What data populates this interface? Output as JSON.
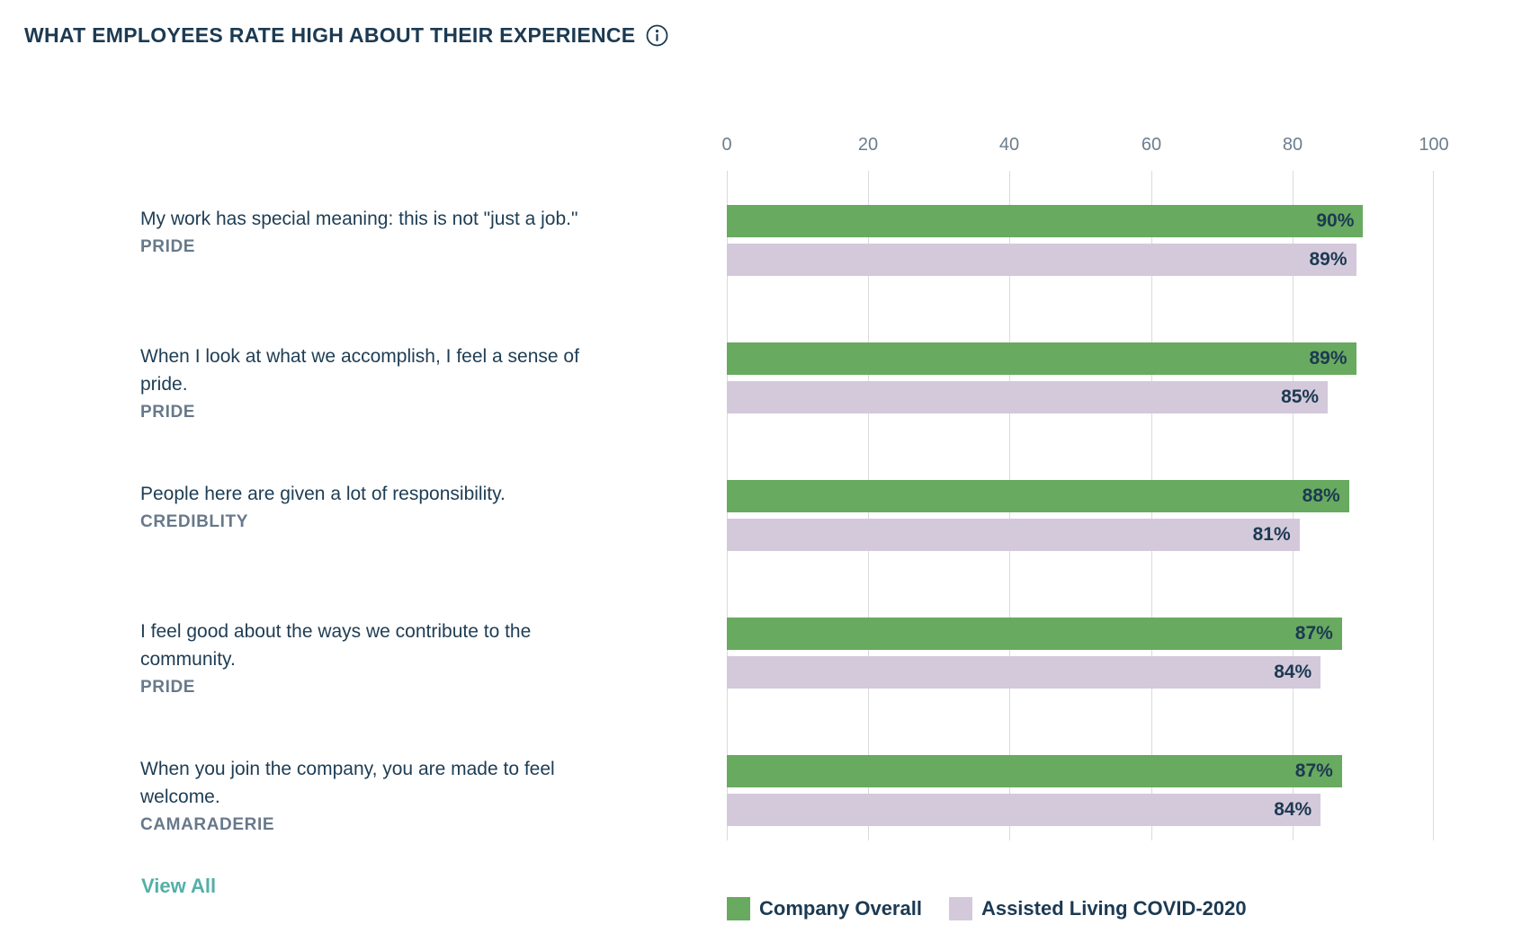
{
  "header": {
    "title": "WHAT EMPLOYEES RATE HIGH ABOUT THEIR EXPERIENCE"
  },
  "colors": {
    "green": "#68aa5f",
    "lavender": "#d4c9db",
    "navy": "#1c3a52",
    "teal": "#54afa7",
    "dimension_gray": "#67798a",
    "axis_gray": "#6b7e8e",
    "gridline": "#d8dbdd"
  },
  "chart_data": {
    "type": "bar",
    "orientation": "horizontal",
    "title": "WHAT EMPLOYEES RATE HIGH ABOUT THEIR EXPERIENCE",
    "grid": true,
    "legend_position": "bottom",
    "x_axis": {
      "range": [
        0,
        100
      ],
      "ticks": [
        0,
        20,
        40,
        60,
        80,
        100
      ]
    },
    "series_names": [
      "Company Overall",
      "Assisted Living COVID-2020"
    ],
    "rows": [
      {
        "question": "My work has special meaning: this is not \"just a job.\"",
        "dimension": "PRIDE",
        "company_overall": 90,
        "company_overall_label": "90%",
        "assisted_living": 89,
        "assisted_living_label": "89%"
      },
      {
        "question": "When I look at what we accomplish, I feel a sense of pride.",
        "dimension": "PRIDE",
        "company_overall": 89,
        "company_overall_label": "89%",
        "assisted_living": 85,
        "assisted_living_label": "85%"
      },
      {
        "question": "People here are given a lot of responsibility.",
        "dimension": "CREDIBLITY",
        "company_overall": 88,
        "company_overall_label": "88%",
        "assisted_living": 81,
        "assisted_living_label": "81%"
      },
      {
        "question": "I feel good about the ways we contribute to the community.",
        "dimension": "PRIDE",
        "company_overall": 87,
        "company_overall_label": "87%",
        "assisted_living": 84,
        "assisted_living_label": "84%"
      },
      {
        "question": "When you join the company, you are made to feel welcome.",
        "dimension": "CAMARADERIE",
        "company_overall": 87,
        "company_overall_label": "87%",
        "assisted_living": 84,
        "assisted_living_label": "84%"
      }
    ]
  },
  "legend": {
    "items": [
      {
        "label": "Company Overall",
        "color": "#68aa5f"
      },
      {
        "label": "Assisted Living COVID-2020",
        "color": "#d4c9db"
      }
    ]
  },
  "footer": {
    "view_all_label": "View All"
  }
}
